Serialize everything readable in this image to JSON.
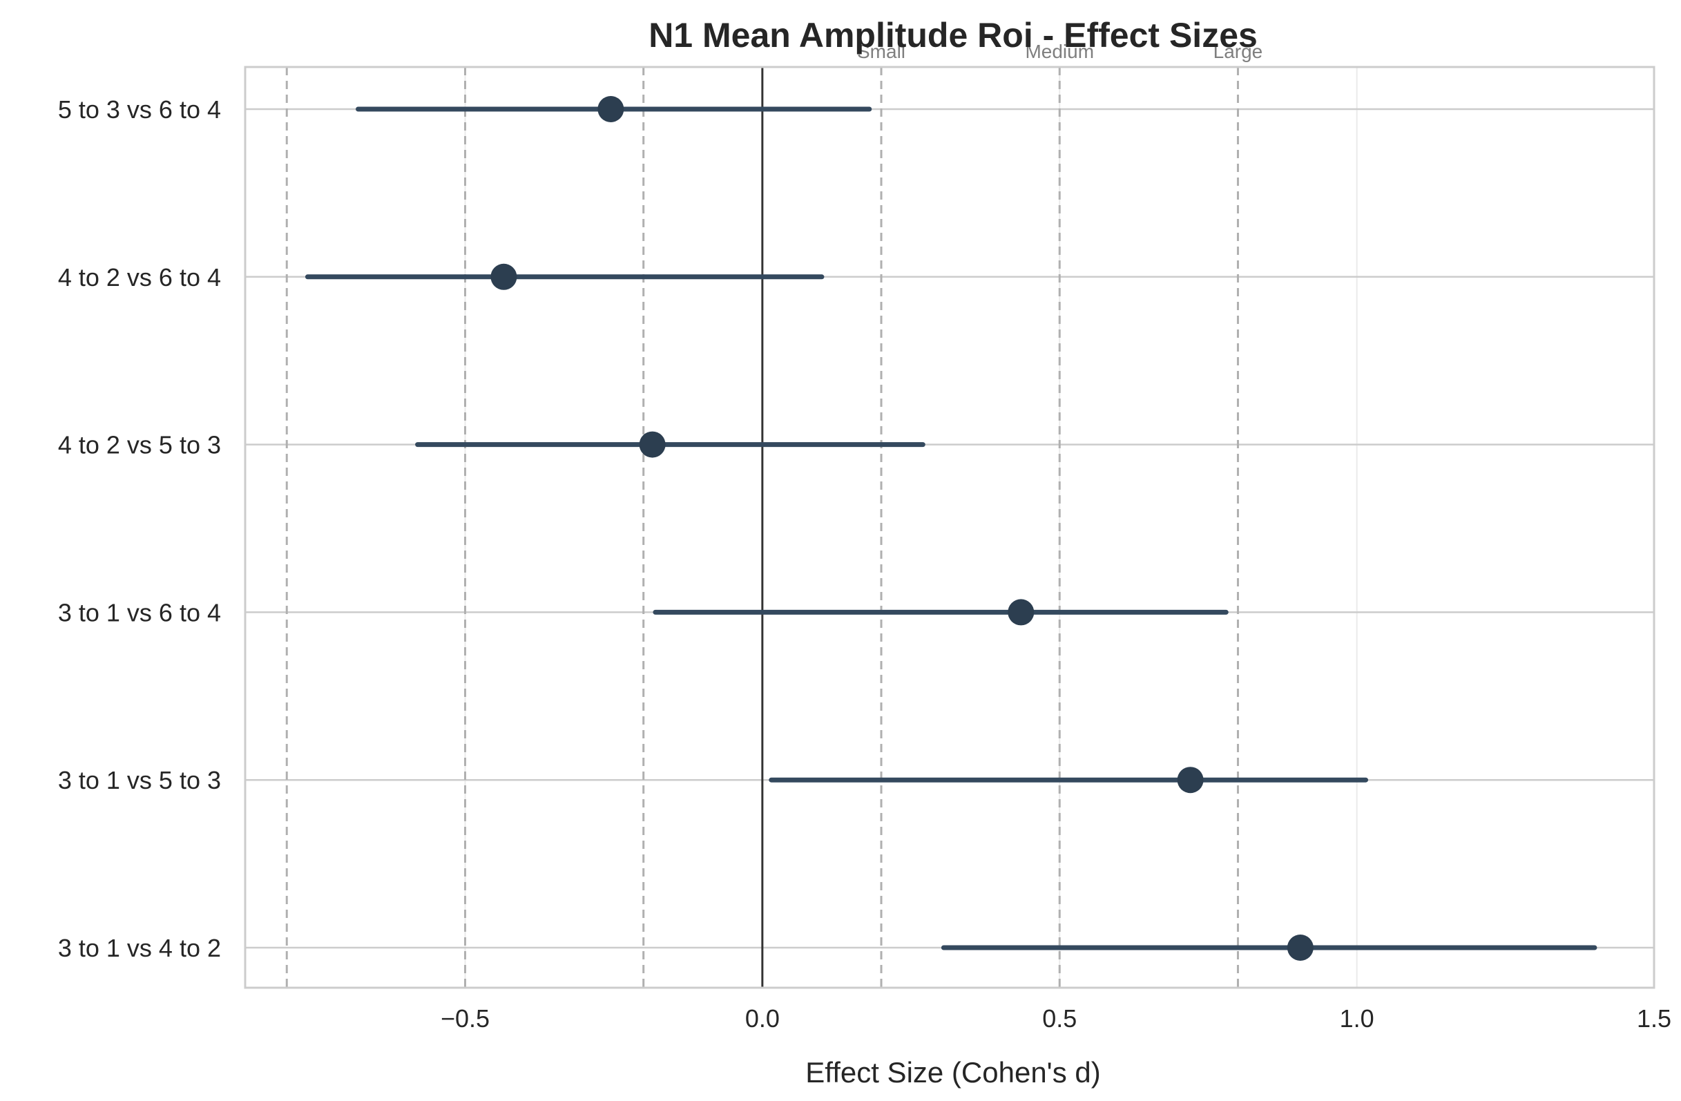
{
  "chart_data": {
    "type": "forest",
    "title": "N1 Mean Amplitude Roi - Effect Sizes",
    "xlabel": "Effect Size (Cohen's d)",
    "ylabel": "",
    "xlim": [
      -0.87,
      1.5
    ],
    "x_ticks": [
      -0.5,
      0.0,
      0.5,
      1.0,
      1.5
    ],
    "x_tick_labels": [
      "−0.5",
      "0.0",
      "0.5",
      "1.0",
      "1.5"
    ],
    "grid": true,
    "categories": [
      "5 to 3 vs 6 to 4",
      "4 to 2 vs 6 to 4",
      "4 to 2 vs 5 to 3",
      "3 to 1 vs 6 to 4",
      "3 to 1 vs 5 to 3",
      "3 to 1 vs 4 to 2"
    ],
    "effects": [
      -0.255,
      -0.435,
      -0.185,
      0.435,
      0.72,
      0.905
    ],
    "ci_lower": [
      -0.68,
      -0.765,
      -0.58,
      -0.18,
      0.015,
      0.305
    ],
    "ci_upper": [
      0.18,
      0.1,
      0.27,
      0.78,
      1.015,
      1.4
    ],
    "zero_line": 0,
    "reference_lines": [
      {
        "label": "Small",
        "values": [
          -0.2,
          0.2
        ]
      },
      {
        "label": "Medium",
        "values": [
          -0.5,
          0.5
        ]
      },
      {
        "label": "Large",
        "values": [
          -0.8,
          0.8
        ]
      }
    ],
    "colors": {
      "marker": "#2c3e50",
      "ci_line": "#34495e",
      "zero_line": "#333333",
      "reference_line": "#b0b0b0",
      "grid": "#cccccc"
    }
  }
}
